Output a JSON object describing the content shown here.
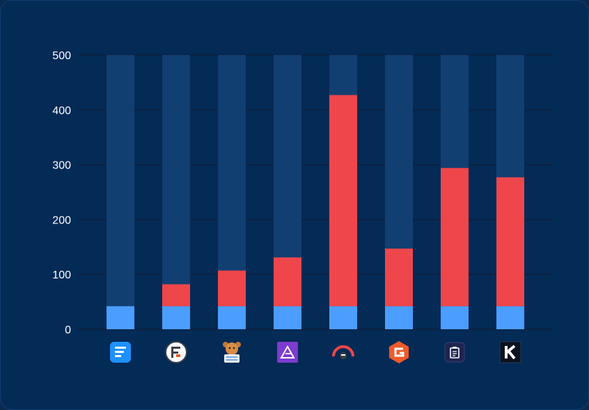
{
  "chart_data": {
    "type": "bar",
    "title": "",
    "xlabel": "",
    "ylabel": "",
    "ylim": [
      0,
      500
    ],
    "yticks": [
      "0",
      "100",
      "200",
      "300",
      "400",
      "500"
    ],
    "grid": true,
    "categories": [
      "fluent-forms-icon",
      "formidable-forms-icon",
      "wpforms-icon",
      "everest-forms-icon",
      "ninja-forms-icon",
      "gravity-forms-icon",
      "forminator-icon",
      "kadence-icon"
    ],
    "series": [
      {
        "values": [
          42,
          42,
          42,
          42,
          42,
          42,
          42,
          42
        ],
        "color": "#4b9dff"
      },
      {
        "values": [
          0,
          40,
          65,
          89,
          385,
          105,
          252,
          235
        ],
        "color": "#ef464b"
      }
    ],
    "track_color": "#123f72"
  }
}
